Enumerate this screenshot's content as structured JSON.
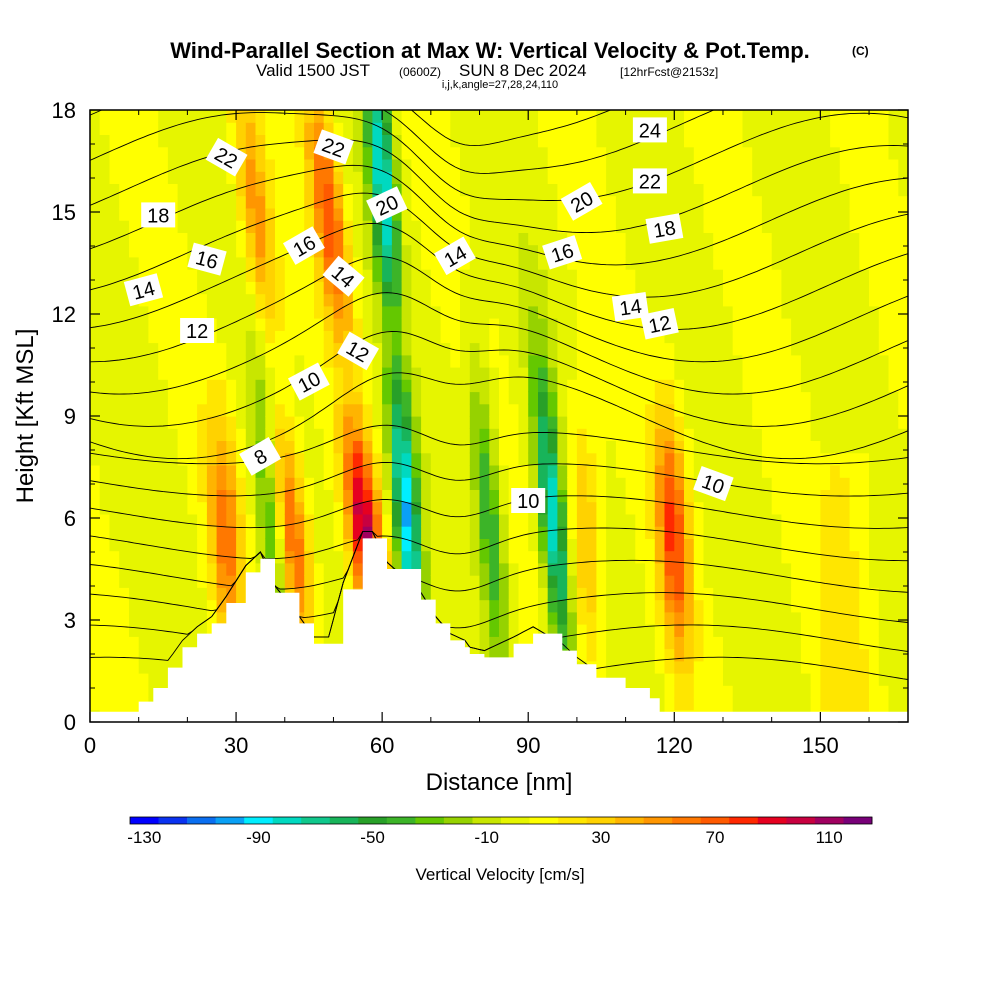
{
  "header": {
    "title": "Wind-Parallel Section at Max W: Vertical Velocity & Pot.Temp.",
    "copyright": "(C)",
    "valid_main": "Valid 1500 JST",
    "valid_zulu": "(0600Z)",
    "valid_date": "SUN 8 Dec 2024",
    "forecast": "[12hrFcst@2153z]",
    "params": "i,j,k,angle=27,28,24,110"
  },
  "chart_data": {
    "type": "heatmap",
    "title": "Wind-Parallel Section at Max W: Vertical Velocity & Pot.Temp.",
    "xlabel": "Distance [nm]",
    "ylabel": "Height [Kft MSL]",
    "xlim": [
      0,
      168
    ],
    "ylim": [
      0,
      18
    ],
    "x_ticks": [
      0,
      30,
      60,
      90,
      120,
      150
    ],
    "y_ticks": [
      0,
      3,
      6,
      9,
      12,
      15,
      18
    ],
    "x_tick_labels": [
      "0",
      "30",
      "60",
      "90",
      "120",
      "150"
    ],
    "y_tick_labels": [
      "0",
      "3",
      "6",
      "9",
      "12",
      "15",
      "18"
    ],
    "grid": false,
    "colorbar": {
      "title": "Vertical Velocity [cm/s]",
      "range": [
        -130,
        120
      ],
      "step": 10,
      "tick_values": [
        -130,
        -90,
        -50,
        -10,
        30,
        70,
        110
      ],
      "tick_labels": [
        "-130",
        "-90",
        "-50",
        "-10",
        "30",
        "70",
        "110"
      ],
      "colors": [
        "#0000ff",
        "#0a32f0",
        "#0a6ef0",
        "#0aa0f5",
        "#00eeff",
        "#00d9c0",
        "#10c88c",
        "#18b45a",
        "#28a028",
        "#3cb428",
        "#64c800",
        "#96d200",
        "#c8e600",
        "#e6f500",
        "#ffff00",
        "#ffe600",
        "#ffd200",
        "#ffb400",
        "#ff9600",
        "#ff7800",
        "#ff5a00",
        "#ff2800",
        "#e60020",
        "#c80040",
        "#a00060",
        "#780078"
      ]
    },
    "updraft_bands": [
      {
        "x_center": 42,
        "w_max": 70
      },
      {
        "x_center": 57,
        "w_max": 100
      },
      {
        "x_center": 102,
        "w_max": 40
      },
      {
        "x_center": 120,
        "w_max": 75
      },
      {
        "x_center": 28,
        "w_max": 55
      }
    ],
    "downdraft_bands": [
      {
        "x_center": 37,
        "w_min": -40
      },
      {
        "x_center": 65,
        "w_min": -100
      },
      {
        "x_center": 82,
        "w_min": -50
      },
      {
        "x_center": 95,
        "w_min": -85
      }
    ],
    "terrain": {
      "x": [
        0,
        10,
        13,
        16,
        19,
        22,
        25,
        28,
        32,
        35,
        38,
        43,
        46,
        49,
        52,
        56,
        58,
        61,
        68,
        71,
        74,
        77,
        78,
        81,
        87,
        91,
        97,
        100,
        104,
        110,
        115,
        117,
        121,
        168
      ],
      "height_kft": [
        0.3,
        0.6,
        1.0,
        1.6,
        2.2,
        2.6,
        2.9,
        3.5,
        4.4,
        4.8,
        3.8,
        2.9,
        2.3,
        2.3,
        3.9,
        5.4,
        5.4,
        4.5,
        3.6,
        2.9,
        2.4,
        2.2,
        2.0,
        1.9,
        2.3,
        2.6,
        2.1,
        1.7,
        1.3,
        1.0,
        0.7,
        0.3,
        0.3,
        0.3
      ]
    },
    "theta_contour_labels": [
      "8",
      "10",
      "10",
      "10",
      "12",
      "12",
      "12",
      "14",
      "14",
      "14",
      "14",
      "16",
      "16",
      "16",
      "18",
      "18",
      "20",
      "20",
      "22",
      "22",
      "22",
      "24"
    ],
    "theta_contour_values": [
      8,
      9,
      10,
      11,
      12,
      13,
      14,
      15,
      16,
      17,
      18,
      19,
      20,
      21,
      22,
      23,
      24,
      25,
      26
    ]
  }
}
